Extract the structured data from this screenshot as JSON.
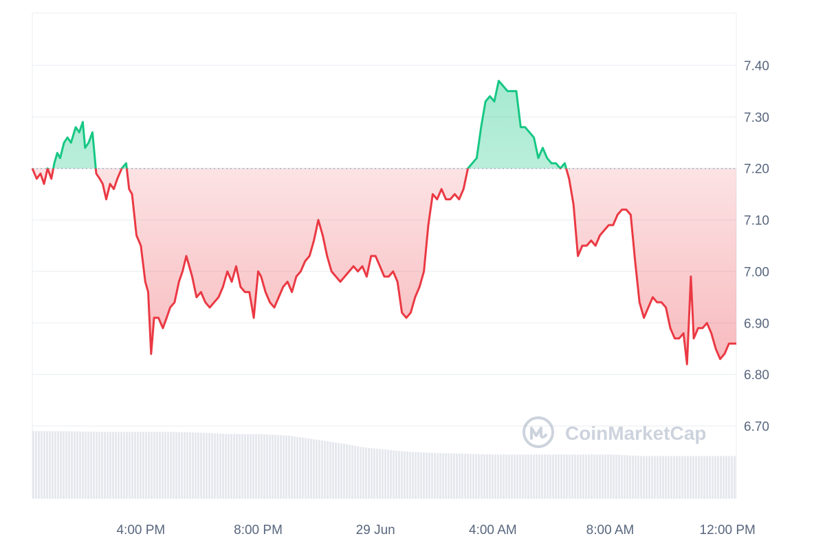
{
  "chart_data": {
    "type": "area",
    "title": "",
    "xlabel": "",
    "ylabel": "",
    "baseline": 7.2,
    "x_ticks": [
      "4:00 PM",
      "8:00 PM",
      "29 Jun",
      "4:00 AM",
      "8:00 AM",
      "12:00 PM"
    ],
    "y_ticks": [
      "7.40",
      "7.30",
      "7.20",
      "7.10",
      "7.00",
      "6.90",
      "6.80",
      "6.70"
    ],
    "ylim": [
      6.6,
      7.5
    ],
    "xlim_hours": [
      -3.7,
      20.3
    ],
    "x_axis_start": "28 Jun 12:18 PM",
    "grid": true,
    "colors": {
      "up": "#16c784",
      "down": "#ea3943",
      "baseline": "#a6b0c3",
      "grid": "#eff2f5",
      "volume": "#e6e8ee"
    },
    "series": [
      {
        "values": [
          [
            -3.7,
            7.2
          ],
          [
            -3.55,
            7.18
          ],
          [
            -3.42,
            7.19
          ],
          [
            -3.3,
            7.17
          ],
          [
            -3.18,
            7.2
          ],
          [
            -3.05,
            7.18
          ],
          [
            -2.95,
            7.21
          ],
          [
            -2.85,
            7.23
          ],
          [
            -2.75,
            7.22
          ],
          [
            -2.62,
            7.25
          ],
          [
            -2.5,
            7.26
          ],
          [
            -2.38,
            7.25
          ],
          [
            -2.22,
            7.28
          ],
          [
            -2.1,
            7.27
          ],
          [
            -1.98,
            7.29
          ],
          [
            -1.9,
            7.24
          ],
          [
            -1.78,
            7.25
          ],
          [
            -1.65,
            7.27
          ],
          [
            -1.52,
            7.19
          ],
          [
            -1.4,
            7.18
          ],
          [
            -1.3,
            7.17
          ],
          [
            -1.18,
            7.14
          ],
          [
            -1.05,
            7.17
          ],
          [
            -0.92,
            7.16
          ],
          [
            -0.8,
            7.18
          ],
          [
            -0.65,
            7.2
          ],
          [
            -0.5,
            7.21
          ],
          [
            -0.4,
            7.16
          ],
          [
            -0.3,
            7.15
          ],
          [
            -0.15,
            7.07
          ],
          [
            0.0,
            7.05
          ],
          [
            0.15,
            6.98
          ],
          [
            0.25,
            6.96
          ],
          [
            0.35,
            6.84
          ],
          [
            0.45,
            6.91
          ],
          [
            0.6,
            6.91
          ],
          [
            0.75,
            6.89
          ],
          [
            0.88,
            6.91
          ],
          [
            1.0,
            6.93
          ],
          [
            1.15,
            6.94
          ],
          [
            1.3,
            6.98
          ],
          [
            1.42,
            7.0
          ],
          [
            1.55,
            7.03
          ],
          [
            1.65,
            7.01
          ],
          [
            1.75,
            6.99
          ],
          [
            1.9,
            6.95
          ],
          [
            2.05,
            6.96
          ],
          [
            2.2,
            6.94
          ],
          [
            2.35,
            6.93
          ],
          [
            2.5,
            6.94
          ],
          [
            2.65,
            6.95
          ],
          [
            2.8,
            6.97
          ],
          [
            2.95,
            7.0
          ],
          [
            3.1,
            6.98
          ],
          [
            3.25,
            7.01
          ],
          [
            3.4,
            6.97
          ],
          [
            3.55,
            6.96
          ],
          [
            3.7,
            6.96
          ],
          [
            3.85,
            6.91
          ],
          [
            4.0,
            7.0
          ],
          [
            4.1,
            6.99
          ],
          [
            4.25,
            6.96
          ],
          [
            4.4,
            6.94
          ],
          [
            4.55,
            6.93
          ],
          [
            4.7,
            6.95
          ],
          [
            4.85,
            6.97
          ],
          [
            5.0,
            6.98
          ],
          [
            5.15,
            6.96
          ],
          [
            5.3,
            6.99
          ],
          [
            5.45,
            7.0
          ],
          [
            5.6,
            7.02
          ],
          [
            5.75,
            7.03
          ],
          [
            5.9,
            7.06
          ],
          [
            6.05,
            7.1
          ],
          [
            6.2,
            7.07
          ],
          [
            6.35,
            7.03
          ],
          [
            6.5,
            7.0
          ],
          [
            6.65,
            6.99
          ],
          [
            6.8,
            6.98
          ],
          [
            6.95,
            6.99
          ],
          [
            7.1,
            7.0
          ],
          [
            7.25,
            7.01
          ],
          [
            7.4,
            7.0
          ],
          [
            7.55,
            7.01
          ],
          [
            7.7,
            6.99
          ],
          [
            7.85,
            7.03
          ],
          [
            8.0,
            7.03
          ],
          [
            8.15,
            7.01
          ],
          [
            8.3,
            6.99
          ],
          [
            8.45,
            6.99
          ],
          [
            8.6,
            7.0
          ],
          [
            8.75,
            6.98
          ],
          [
            8.9,
            6.92
          ],
          [
            9.05,
            6.91
          ],
          [
            9.2,
            6.92
          ],
          [
            9.35,
            6.95
          ],
          [
            9.5,
            6.97
          ],
          [
            9.65,
            7.0
          ],
          [
            9.8,
            7.09
          ],
          [
            9.95,
            7.15
          ],
          [
            10.1,
            7.14
          ],
          [
            10.25,
            7.16
          ],
          [
            10.4,
            7.14
          ],
          [
            10.55,
            7.14
          ],
          [
            10.7,
            7.15
          ],
          [
            10.85,
            7.14
          ],
          [
            11.0,
            7.16
          ],
          [
            11.15,
            7.2
          ],
          [
            11.3,
            7.21
          ],
          [
            11.45,
            7.22
          ],
          [
            11.6,
            7.28
          ],
          [
            11.75,
            7.33
          ],
          [
            11.9,
            7.34
          ],
          [
            12.05,
            7.33
          ],
          [
            12.2,
            7.37
          ],
          [
            12.35,
            7.36
          ],
          [
            12.5,
            7.35
          ],
          [
            12.65,
            7.35
          ],
          [
            12.8,
            7.35
          ],
          [
            12.95,
            7.28
          ],
          [
            13.1,
            7.28
          ],
          [
            13.25,
            7.27
          ],
          [
            13.4,
            7.26
          ],
          [
            13.55,
            7.22
          ],
          [
            13.7,
            7.24
          ],
          [
            13.85,
            7.22
          ],
          [
            14.0,
            7.21
          ],
          [
            14.15,
            7.21
          ],
          [
            14.3,
            7.2
          ],
          [
            14.45,
            7.21
          ],
          [
            14.6,
            7.18
          ],
          [
            14.75,
            7.13
          ],
          [
            14.9,
            7.03
          ],
          [
            15.05,
            7.05
          ],
          [
            15.2,
            7.05
          ],
          [
            15.35,
            7.06
          ],
          [
            15.5,
            7.05
          ],
          [
            15.65,
            7.07
          ],
          [
            15.8,
            7.08
          ],
          [
            15.95,
            7.09
          ],
          [
            16.1,
            7.09
          ],
          [
            16.25,
            7.11
          ],
          [
            16.4,
            7.12
          ],
          [
            16.55,
            7.12
          ],
          [
            16.7,
            7.11
          ],
          [
            16.85,
            7.02
          ],
          [
            17.0,
            6.94
          ],
          [
            17.15,
            6.91
          ],
          [
            17.3,
            6.93
          ],
          [
            17.45,
            6.95
          ],
          [
            17.6,
            6.94
          ],
          [
            17.75,
            6.94
          ],
          [
            17.9,
            6.93
          ],
          [
            18.05,
            6.89
          ],
          [
            18.2,
            6.87
          ],
          [
            18.35,
            6.87
          ],
          [
            18.5,
            6.88
          ],
          [
            18.62,
            6.82
          ],
          [
            18.75,
            6.99
          ],
          [
            18.85,
            6.87
          ],
          [
            19.0,
            6.89
          ],
          [
            19.15,
            6.89
          ],
          [
            19.3,
            6.9
          ],
          [
            19.45,
            6.88
          ],
          [
            19.6,
            6.85
          ],
          [
            19.75,
            6.83
          ],
          [
            19.9,
            6.84
          ],
          [
            20.05,
            6.86
          ],
          [
            20.3,
            6.86
          ]
        ]
      }
    ],
    "volume": {
      "values": [
        [
          -3.7,
          0.92
        ],
        [
          -2.5,
          0.92
        ],
        [
          -1.5,
          0.91
        ],
        [
          0.0,
          0.91
        ],
        [
          1.0,
          0.91
        ],
        [
          2.0,
          0.9
        ],
        [
          3.0,
          0.88
        ],
        [
          4.0,
          0.88
        ],
        [
          5.0,
          0.86
        ],
        [
          6.0,
          0.8
        ],
        [
          7.0,
          0.74
        ],
        [
          7.5,
          0.7
        ],
        [
          8.0,
          0.68
        ],
        [
          9.0,
          0.64
        ],
        [
          10.0,
          0.62
        ],
        [
          11.0,
          0.61
        ],
        [
          12.0,
          0.6
        ],
        [
          13.0,
          0.6
        ],
        [
          14.0,
          0.6
        ],
        [
          15.0,
          0.6
        ],
        [
          16.0,
          0.6
        ],
        [
          17.0,
          0.58
        ],
        [
          18.0,
          0.58
        ],
        [
          19.0,
          0.58
        ],
        [
          20.3,
          0.58
        ]
      ]
    }
  },
  "watermark": {
    "text": "CoinMarketCap"
  }
}
